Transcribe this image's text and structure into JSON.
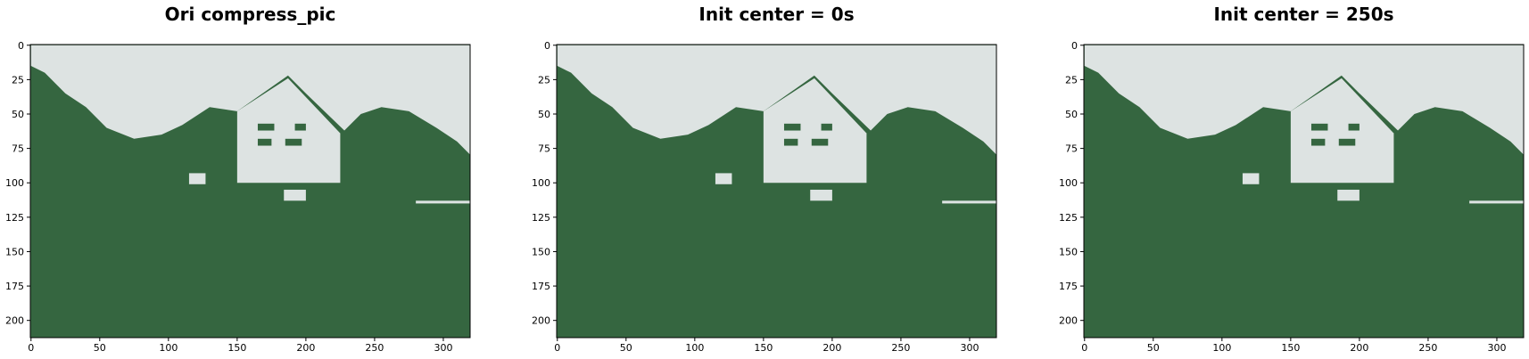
{
  "chart_data": [
    {
      "type": "image",
      "title": "Ori compress_pic",
      "xlim": [
        -0.5,
        319.5
      ],
      "ylim": [
        212.5,
        -0.5
      ],
      "xticks": [
        0,
        50,
        100,
        150,
        200,
        250,
        300
      ],
      "yticks": [
        0,
        25,
        50,
        75,
        100,
        125,
        150,
        175,
        200
      ],
      "colors": [
        "#dde3e2",
        "#356640"
      ]
    },
    {
      "type": "image",
      "title": "Init center = 0s",
      "xlim": [
        -0.5,
        319.5
      ],
      "ylim": [
        212.5,
        -0.5
      ],
      "xticks": [
        0,
        50,
        100,
        150,
        200,
        250,
        300
      ],
      "yticks": [
        0,
        25,
        50,
        75,
        100,
        125,
        150,
        175,
        200
      ],
      "colors": [
        "#dde3e2",
        "#356640"
      ]
    },
    {
      "type": "image",
      "title": "Init center = 250s",
      "xlim": [
        -0.5,
        319.5
      ],
      "ylim": [
        212.5,
        -0.5
      ],
      "xticks": [
        0,
        50,
        100,
        150,
        200,
        250,
        300
      ],
      "yticks": [
        0,
        25,
        50,
        75,
        100,
        125,
        150,
        175,
        200
      ],
      "colors": [
        "#dde3e2",
        "#356640"
      ]
    }
  ]
}
